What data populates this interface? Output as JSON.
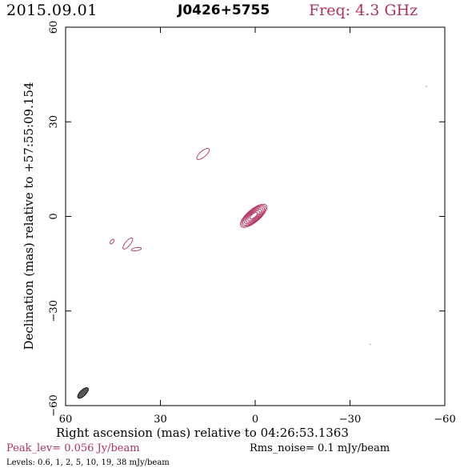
{
  "header": {
    "date": "2015.09.01",
    "source": "J0426+5755",
    "frequency": "Freq: 4.3 GHz"
  },
  "footer": {
    "peak": "Peak_lev=  0.056 Jy/beam",
    "rms": "Rms_noise=  0.1 mJy/beam",
    "levels": "Levels: 0.6,   1,   2,   5,  10,  19,  38 mJy/beam"
  },
  "colors": {
    "contour": "#b03060",
    "frame": "#000000",
    "beam_fill": "#555555"
  },
  "chart_data": {
    "type": "contour",
    "xlabel": "Right ascension (mas) relative to 04:26:53.1363",
    "ylabel": "Declination (mas) relative to +57:55:09.154",
    "xlim": [
      60,
      -60
    ],
    "ylim": [
      -60,
      60
    ],
    "xticks": [
      60,
      30,
      0,
      -30,
      -60
    ],
    "yticks": [
      60,
      30,
      0,
      -30,
      -60
    ],
    "xtick_labels": [
      "60",
      "30",
      "0",
      "−30",
      "−60"
    ],
    "ytick_labels": [
      "60",
      "30",
      "0",
      "−30",
      "−60"
    ],
    "contour_levels_mJy_per_beam": [
      0.6,
      1,
      2,
      5,
      10,
      19,
      38
    ],
    "peak_Jy_per_beam": 0.056,
    "rms_mJy_per_beam": 0.1,
    "core": {
      "x": 0.5,
      "y": 0.2,
      "angle_deg": 40,
      "semi_axes": [
        [
          5.2,
          2.0
        ],
        [
          4.7,
          1.8
        ],
        [
          4.2,
          1.6
        ],
        [
          3.6,
          1.35
        ],
        [
          3.0,
          1.1
        ],
        [
          2.3,
          0.85
        ],
        [
          1.5,
          0.6
        ]
      ]
    },
    "components": [
      {
        "x": 16.5,
        "y": 19.8,
        "a": 2.5,
        "b": 0.95,
        "angle_deg": 40
      },
      {
        "x": 45.3,
        "y": -8.0,
        "a": 0.9,
        "b": 0.45,
        "angle_deg": 50
      },
      {
        "x": 40.3,
        "y": -8.6,
        "a": 2.2,
        "b": 0.8,
        "angle_deg": 50
      },
      {
        "x": 37.6,
        "y": -10.4,
        "a": 1.6,
        "b": 0.5,
        "angle_deg": 10
      }
    ],
    "noise_points": [
      {
        "x": -54.2,
        "y": 41.2
      },
      {
        "x": -36.4,
        "y": -40.6
      }
    ],
    "beam": {
      "x": 54.5,
      "y": -56.0,
      "a": 2.2,
      "b": 0.95,
      "angle_deg": 45
    }
  }
}
